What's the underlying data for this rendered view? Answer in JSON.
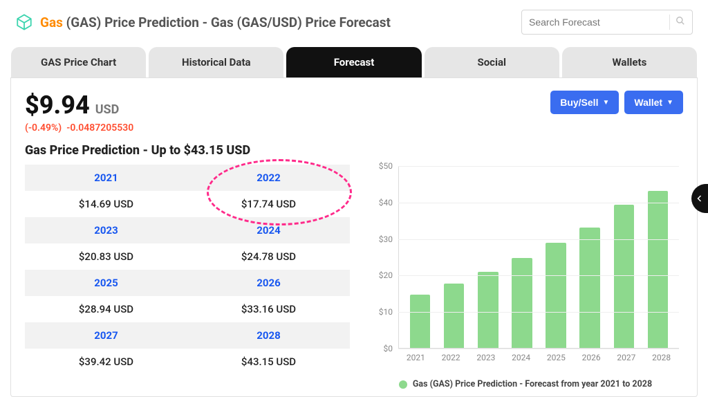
{
  "header": {
    "accent_text": "Gas",
    "title_rest": " (GAS) Price Prediction - Gas (GAS/USD) Price Forecast",
    "accent_color": "#ff8a00",
    "logo_color": "#3bd4ae"
  },
  "search": {
    "placeholder": "Search Forecast"
  },
  "tabs": {
    "items": [
      "GAS Price Chart",
      "Historical Data",
      "Forecast",
      "Social",
      "Wallets"
    ],
    "active_index": 2,
    "active_bg": "#111111",
    "inactive_bg": "#e6e6e6"
  },
  "price": {
    "value": "$9.94",
    "currency": "USD",
    "change_pct": "(-0.49%)",
    "change_abs": "-0.0487205530",
    "change_color": "#ff4c2f"
  },
  "buttons": {
    "buy_sell": "Buy/Sell",
    "wallet": "Wallet",
    "bg": "#3a6df0"
  },
  "subtitle": "Gas Price Prediction - Up to $43.15 USD",
  "predictions": [
    {
      "year": "2021",
      "value": "$14.69 USD",
      "num": 14.69
    },
    {
      "year": "2022",
      "value": "$17.74 USD",
      "num": 17.74
    },
    {
      "year": "2023",
      "value": "$20.83 USD",
      "num": 20.83
    },
    {
      "year": "2024",
      "value": "$24.78 USD",
      "num": 24.78
    },
    {
      "year": "2025",
      "value": "$28.94 USD",
      "num": 28.94
    },
    {
      "year": "2026",
      "value": "$33.16 USD",
      "num": 33.16
    },
    {
      "year": "2027",
      "value": "$39.42 USD",
      "num": 39.42
    },
    {
      "year": "2028",
      "value": "$43.15 USD",
      "num": 43.15
    }
  ],
  "highlight": {
    "color": "#ff2a8a"
  },
  "chart": {
    "type": "bar",
    "ylim": [
      0,
      50
    ],
    "ytick_step": 10,
    "ytick_prefix": "$",
    "bar_color": "#8dd98d",
    "grid_color": "#eeeeee",
    "axis_color": "#dcdcdc",
    "tick_color": "#888888",
    "legend": "Gas (GAS) Price Prediction - Forecast from year 2021 to 2028",
    "categories": [
      "2021",
      "2022",
      "2023",
      "2024",
      "2025",
      "2026",
      "2027",
      "2028"
    ],
    "values": [
      14.69,
      17.74,
      20.83,
      24.78,
      28.94,
      33.16,
      39.42,
      43.15
    ]
  }
}
